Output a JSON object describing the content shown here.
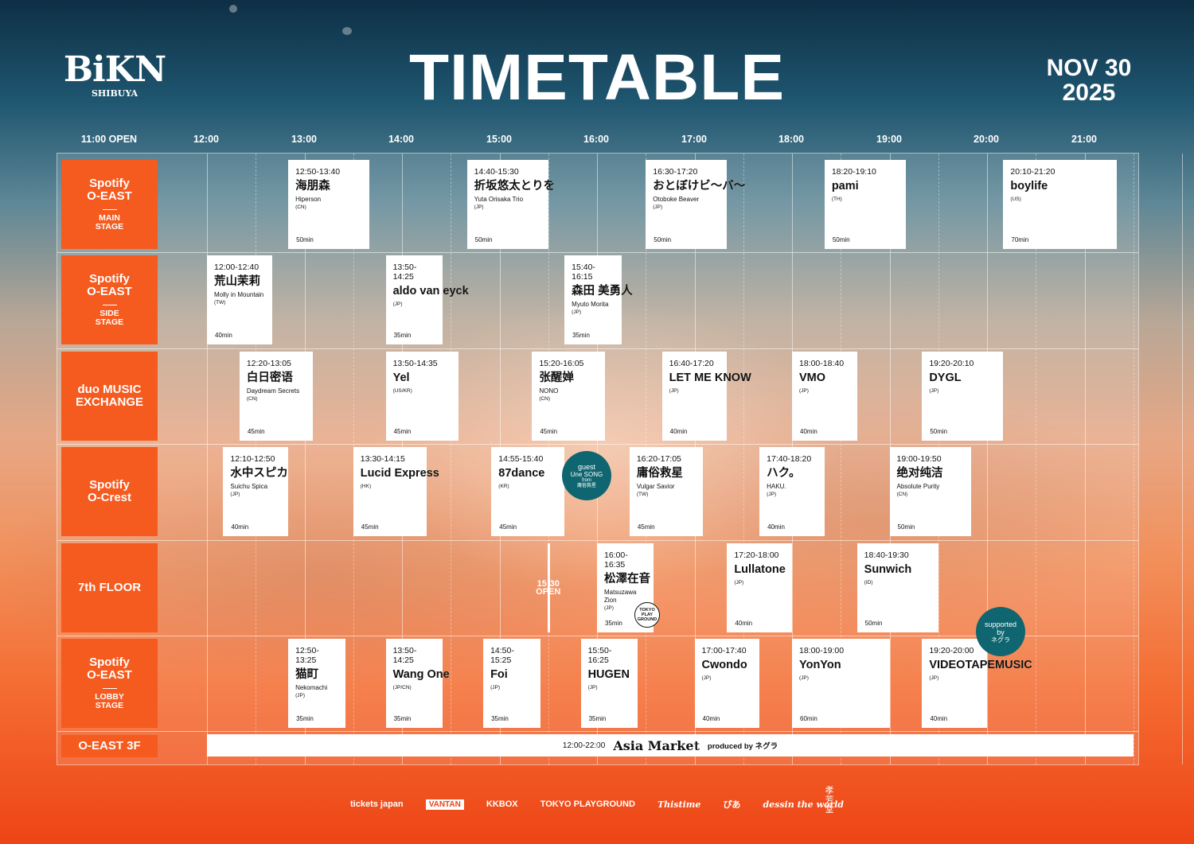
{
  "logo": {
    "main": "BiKN",
    "sub": "SHIBUYA"
  },
  "title": "TIMETABLE",
  "date": {
    "line1": "NOV 30",
    "line2": "2025"
  },
  "time_headers": [
    "11:00 OPEN",
    "12:00",
    "13:00",
    "14:00",
    "15:00",
    "16:00",
    "17:00",
    "18:00",
    "19:00",
    "20:00",
    "21:00"
  ],
  "stages": [
    {
      "name": "Spotify\nO-EAST",
      "sub": "MAIN\nSTAGE"
    },
    {
      "name": "Spotify\nO-EAST",
      "sub": "SIDE\nSTAGE"
    },
    {
      "name": "duo MUSIC\nEXCHANGE",
      "sub": ""
    },
    {
      "name": "Spotify\nO-Crest",
      "sub": ""
    },
    {
      "name": "7th FLOOR",
      "sub": ""
    },
    {
      "name": "Spotify\nO-EAST",
      "sub": "LOBBY\nSTAGE"
    }
  ],
  "acts": [
    {
      "stage": 0,
      "time": "12:50-13:40",
      "name": "海朋森",
      "sub": "Hiperson",
      "origin": "(CN)",
      "dur": "50min"
    },
    {
      "stage": 0,
      "time": "14:40-15:30",
      "name": "折坂悠太とりを",
      "sub": "Yuta Orisaka Trio",
      "origin": "(JP)",
      "dur": "50min"
    },
    {
      "stage": 0,
      "time": "16:30-17:20",
      "name": "おとぼけビ〜バ〜",
      "sub": "Otoboke Beaver",
      "origin": "(JP)",
      "dur": "50min"
    },
    {
      "stage": 0,
      "time": "18:20-19:10",
      "name": "pami",
      "sub": "",
      "origin": "(TH)",
      "dur": "50min"
    },
    {
      "stage": 0,
      "time": "20:10-21:20",
      "name": "boylife",
      "sub": "",
      "origin": "(US)",
      "dur": "70min"
    },
    {
      "stage": 1,
      "time": "12:00-12:40",
      "name": "荒山茉莉",
      "sub": "Molly in Mountain",
      "origin": "(TW)",
      "dur": "40min"
    },
    {
      "stage": 1,
      "time": "13:50-14:25",
      "name": "aldo van eyck",
      "sub": "",
      "origin": "(JP)",
      "dur": "35min"
    },
    {
      "stage": 1,
      "time": "15:40-16:15",
      "name": "森田 美勇人",
      "sub": "Myuto Morita",
      "origin": "(JP)",
      "dur": "35min"
    },
    {
      "stage": 2,
      "time": "12:20-13:05",
      "name": "白日密语",
      "sub": "Daydream Secrets",
      "origin": "(CN)",
      "dur": "45min"
    },
    {
      "stage": 2,
      "time": "13:50-14:35",
      "name": "Yel",
      "sub": "",
      "origin": "(US/KR)",
      "dur": "45min"
    },
    {
      "stage": 2,
      "time": "15:20-16:05",
      "name": "张醒婵",
      "sub": "NONO",
      "origin": "(CN)",
      "dur": "45min"
    },
    {
      "stage": 2,
      "time": "16:40-17:20",
      "name": "LET ME KNOW",
      "sub": "",
      "origin": "(JP)",
      "dur": "40min"
    },
    {
      "stage": 2,
      "time": "18:00-18:40",
      "name": "VMO",
      "sub": "",
      "origin": "(JP)",
      "dur": "40min"
    },
    {
      "stage": 2,
      "time": "19:20-20:10",
      "name": "DYGL",
      "sub": "",
      "origin": "(JP)",
      "dur": "50min"
    },
    {
      "stage": 3,
      "time": "12:10-12:50",
      "name": "水中スピカ",
      "sub": "Suichu Spica",
      "origin": "(JP)",
      "dur": "40min"
    },
    {
      "stage": 3,
      "time": "13:30-14:15",
      "name": "Lucid Express",
      "sub": "",
      "origin": "(HK)",
      "dur": "45min"
    },
    {
      "stage": 3,
      "time": "14:55-15:40",
      "name": "87dance",
      "sub": "",
      "origin": "(KR)",
      "dur": "45min"
    },
    {
      "stage": 3,
      "time": "16:20-17:05",
      "name": "庸俗救星",
      "sub": "Vulgar Savior",
      "origin": "(TW)",
      "dur": "45min"
    },
    {
      "stage": 3,
      "time": "17:40-18:20",
      "name": "ハク。",
      "sub": "HAKU.",
      "origin": "(JP)",
      "dur": "40min"
    },
    {
      "stage": 3,
      "time": "19:00-19:50",
      "name": "绝对纯洁",
      "sub": "Absolute Purity",
      "origin": "(CN)",
      "dur": "50min"
    },
    {
      "stage": 4,
      "time": "16:00-16:35",
      "name": "松澤在音",
      "sub": "Matsuzawa Zion",
      "origin": "(JP)",
      "dur": "35min"
    },
    {
      "stage": 4,
      "time": "17:20-18:00",
      "name": "Lullatone",
      "sub": "",
      "origin": "(JP)",
      "dur": "40min"
    },
    {
      "stage": 4,
      "time": "18:40-19:30",
      "name": "Sunwich",
      "sub": "",
      "origin": "(ID)",
      "dur": "50min"
    },
    {
      "stage": 5,
      "time": "12:50-13:25",
      "name": "猫町",
      "sub": "Nekomachi",
      "origin": "(JP)",
      "dur": "35min"
    },
    {
      "stage": 5,
      "time": "13:50-14:25",
      "name": "Wang One",
      "sub": "",
      "origin": "(JP/CN)",
      "dur": "35min"
    },
    {
      "stage": 5,
      "time": "14:50-15:25",
      "name": "Foi",
      "sub": "",
      "origin": "(JP)",
      "dur": "35min"
    },
    {
      "stage": 5,
      "time": "15:50-16:25",
      "name": "HUGEN",
      "sub": "",
      "origin": "(JP)",
      "dur": "35min"
    },
    {
      "stage": 5,
      "time": "17:00-17:40",
      "name": "Cwondo",
      "sub": "",
      "origin": "(JP)",
      "dur": "40min"
    },
    {
      "stage": 5,
      "time": "18:00-19:00",
      "name": "YonYon",
      "sub": "",
      "origin": "(JP)",
      "dur": "60min"
    },
    {
      "stage": 5,
      "time": "19:20-20:00",
      "name": "VIDEOTAPEMUSIC",
      "sub": "",
      "origin": "(JP)",
      "dur": "40min"
    }
  ],
  "guest_bubble": {
    "line1": "guest",
    "line2": "Une SONG",
    "line3": "from",
    "line4": "庸俗救星"
  },
  "supported_bubble": {
    "line1": "supported",
    "line2": "by",
    "line3": "ネグラ"
  },
  "tokyo_playground_badge": "TOKYO PLAY GROUND",
  "floor_open": {
    "line1": "15:30",
    "line2": "OPEN"
  },
  "market": {
    "stage": "O-EAST 3F",
    "time": "12:00-22:00",
    "title": "Asia Market",
    "by": "produced by ネグラ"
  },
  "sponsors": [
    "tickets japan",
    "VANTAN",
    "KKBOX",
    "TOKYO PLAYGROUND",
    "Thistime",
    "ぴあ",
    "dessin the world"
  ],
  "stamp": "孝芳堂"
}
